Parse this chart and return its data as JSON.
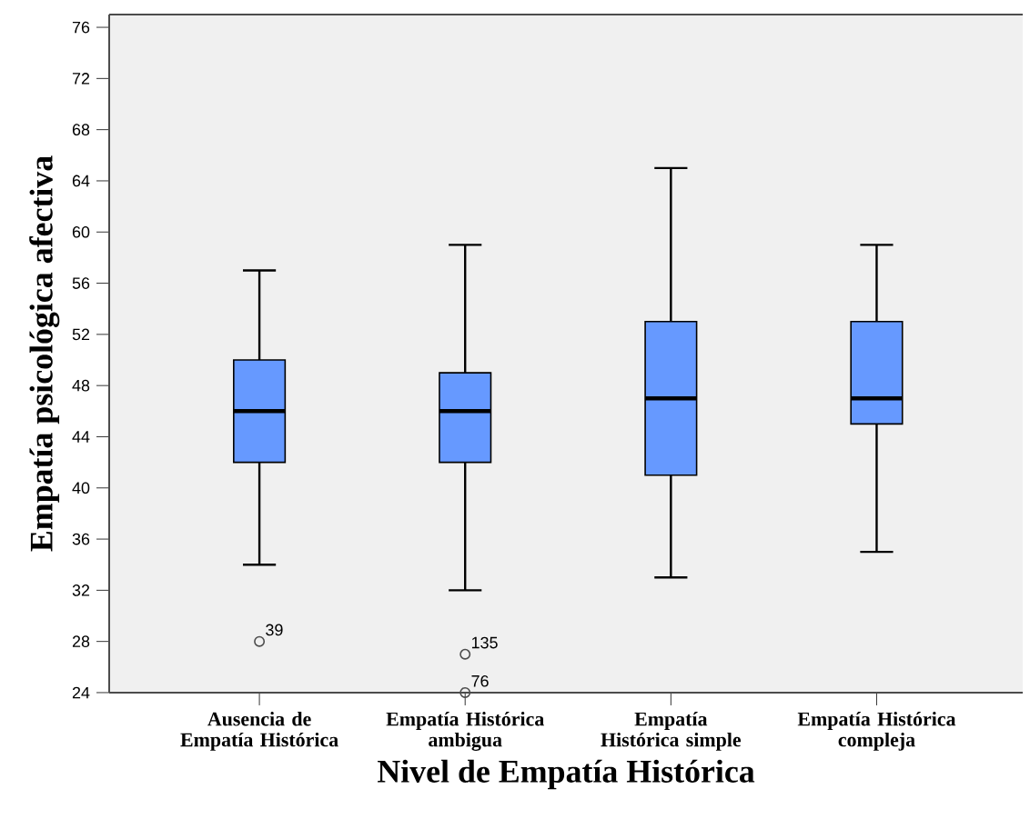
{
  "chart_data": {
    "type": "box",
    "xlabel": "Nivel de Empatía Histórica",
    "ylabel": "Empatía psicológica afectiva",
    "categories": [
      "Ausencia de Empatía Histórica",
      "Empatía Histórica ambigua",
      "Empatía Histórica simple",
      "Empatía Histórica compleja"
    ],
    "boxes": [
      {
        "low": 34,
        "q1": 42,
        "median": 46,
        "q3": 50,
        "high": 57,
        "outliers": [
          28
        ]
      },
      {
        "low": 32,
        "q1": 42,
        "median": 46,
        "q3": 49,
        "high": 59,
        "outliers": [
          27,
          24
        ]
      },
      {
        "low": 33,
        "q1": 41,
        "median": 47,
        "q3": 53,
        "high": 65
      },
      {
        "low": 35,
        "q1": 45,
        "median": 47,
        "q3": 53,
        "high": 59
      }
    ],
    "color": "#6699ff",
    "ylim": [
      24,
      77
    ],
    "yticks": [
      24,
      28,
      32,
      36,
      40,
      44,
      48,
      52,
      56,
      60,
      64,
      68,
      72,
      76
    ],
    "annotations": [
      "39",
      "135",
      "76"
    ]
  }
}
